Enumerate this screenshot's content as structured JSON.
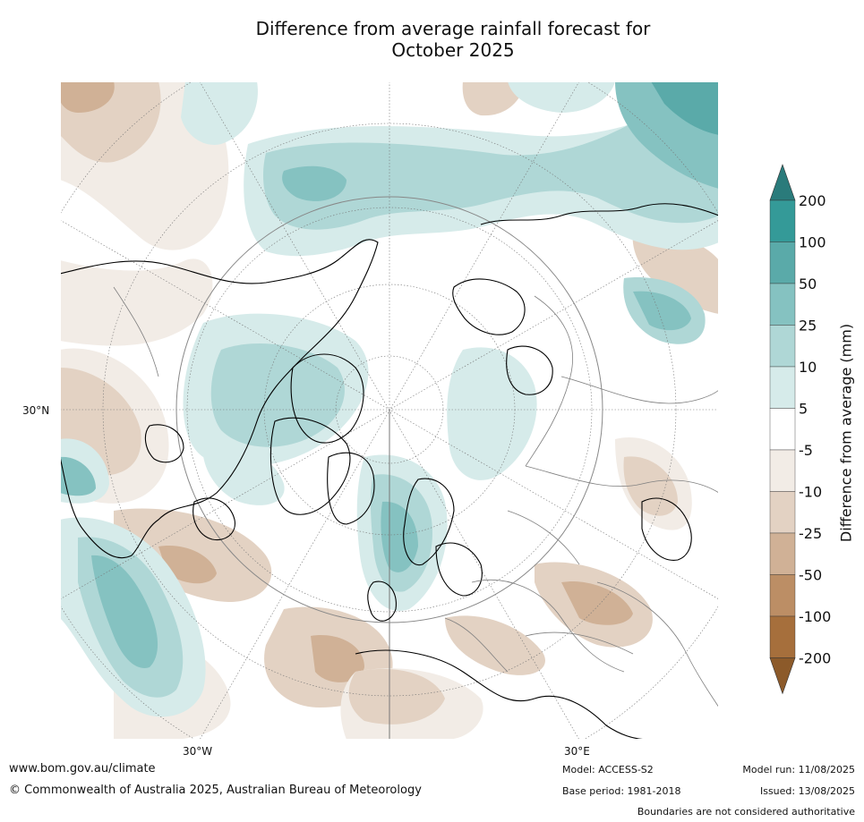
{
  "title_line1": "Difference from average rainfall forecast for",
  "title_line2": "October 2025",
  "axis_labels": {
    "lat_30n": "30°N",
    "lon_30w": "30°W",
    "lon_30e": "30°E"
  },
  "colorbar": {
    "title": "Difference from average (mm)",
    "levels": [
      "200",
      "100",
      "50",
      "25",
      "10",
      "5",
      "-5",
      "-10",
      "-25",
      "-50",
      "-100",
      "-200"
    ],
    "colors_top_to_bottom": [
      "#2a7b7b",
      "#349a98",
      "#5aaaa9",
      "#85c2c1",
      "#afd7d6",
      "#d6ebea",
      "#ffffff",
      "#f2ece6",
      "#e3d2c3",
      "#d0b196",
      "#bc8e65",
      "#a66f3c",
      "#8c5a2a"
    ]
  },
  "footer": {
    "website": "www.bom.gov.au/climate",
    "copyright": "© Commonwealth of Australia 2025, Australian Bureau of Meteorology",
    "model": "Model: ACCESS-S2",
    "base_period": "Base period: 1981-2018",
    "model_run": "Model run: 11/08/2025",
    "issued": "Issued: 13/08/2025",
    "disclaimer": "Boundaries are not considered authoritative"
  },
  "colors": {
    "coast": "#000000",
    "border": "#808080",
    "gridline": "#777777"
  }
}
